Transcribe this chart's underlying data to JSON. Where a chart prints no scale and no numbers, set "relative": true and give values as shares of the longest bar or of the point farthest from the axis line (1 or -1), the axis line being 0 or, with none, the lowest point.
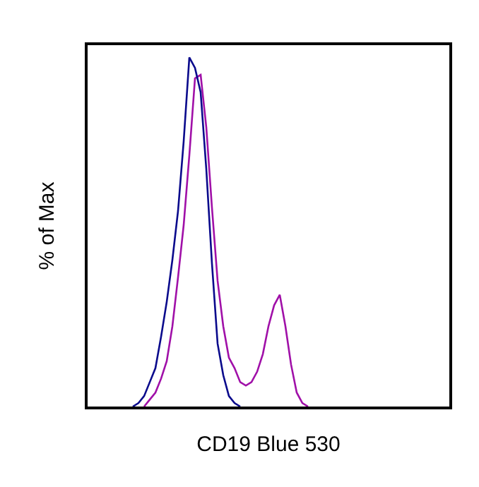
{
  "chart_data": {
    "type": "line",
    "relative": true,
    "xlabel": "CD19 Blue 530",
    "ylabel": "% of Max",
    "tick_labels": false,
    "marker": "none",
    "line_style": "solid",
    "categories": [
      null,
      null,
      null,
      null,
      null,
      null,
      null,
      null,
      null,
      null,
      null,
      null,
      null,
      null,
      null,
      null,
      null,
      null,
      null,
      null,
      null,
      null,
      null,
      null,
      null,
      null,
      null,
      null,
      null,
      null,
      null,
      null,
      null,
      null,
      null,
      null,
      null,
      null,
      null,
      null,
      null,
      null,
      null,
      null,
      null,
      null,
      null,
      null,
      null,
      null,
      null,
      null,
      null,
      null,
      null,
      null,
      null,
      null,
      null,
      null,
      null,
      null,
      null,
      null,
      null
    ],
    "series": [
      {
        "color": "#a010a8",
        "values": [
          null,
          null,
          null,
          null,
          null,
          null,
          null,
          null,
          null,
          null,
          0,
          0.02,
          0.04,
          0.08,
          0.13,
          0.23,
          0.37,
          0.52,
          0.72,
          0.94,
          0.95,
          0.8,
          0.57,
          0.36,
          0.23,
          0.14,
          0.11,
          0.07,
          0.06,
          0.07,
          0.1,
          0.15,
          0.23,
          0.29,
          0.32,
          0.23,
          0.12,
          0.04,
          0.01,
          0,
          null,
          null,
          null,
          null,
          null,
          null,
          null,
          null,
          null,
          null,
          null,
          null,
          null,
          null,
          null,
          null,
          null,
          null,
          null,
          null,
          null,
          null,
          null,
          null,
          null
        ]
      },
      {
        "color": "#0a0a8c",
        "values": [
          null,
          null,
          null,
          null,
          null,
          null,
          null,
          null,
          0,
          0.01,
          0.03,
          0.07,
          0.11,
          0.2,
          0.3,
          0.42,
          0.56,
          0.76,
          1.0,
          0.97,
          0.9,
          0.68,
          0.41,
          0.18,
          0.09,
          0.03,
          0.01,
          0,
          null,
          null,
          null,
          null,
          null,
          null,
          null,
          null,
          null,
          null,
          null,
          null,
          null,
          null,
          null,
          null,
          null,
          null,
          null,
          null,
          null,
          null,
          null,
          null,
          null,
          null,
          null,
          null,
          null,
          null,
          null,
          null,
          null,
          null,
          null,
          null,
          null
        ]
      }
    ]
  }
}
